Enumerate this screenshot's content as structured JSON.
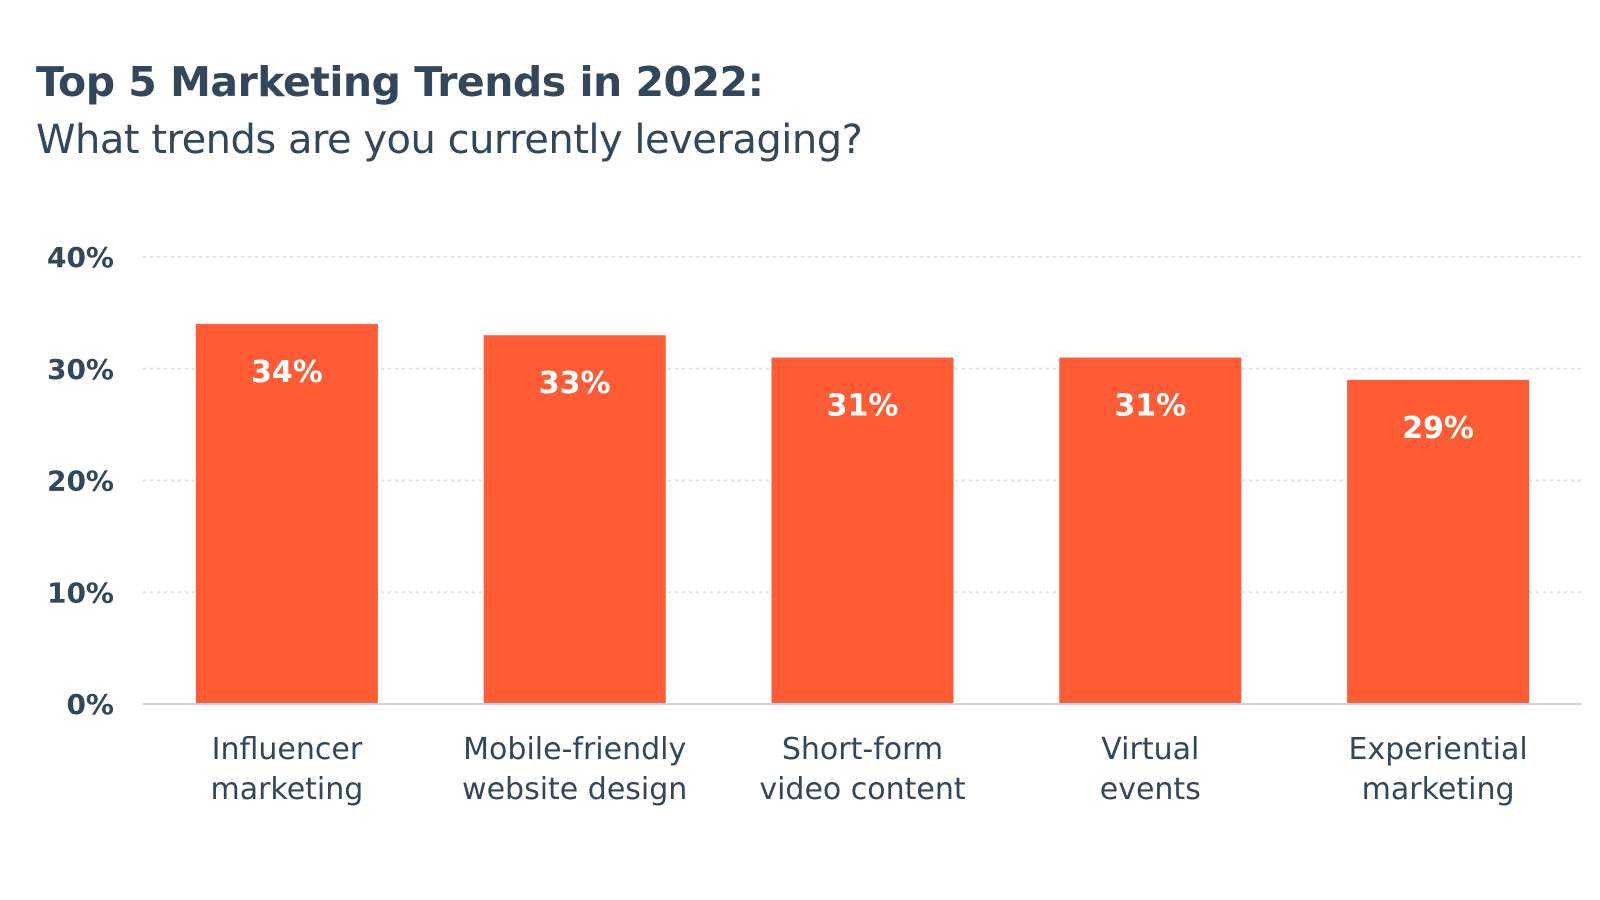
{
  "chart_data": {
    "type": "bar",
    "title": "Top 5 Marketing Trends in 2022:",
    "subtitle": "What trends are you currently leveraging?",
    "categories": [
      [
        "Influencer",
        "marketing"
      ],
      [
        "Mobile-friendly",
        "website design"
      ],
      [
        "Short-form",
        "video content"
      ],
      [
        "Virtual",
        "events"
      ],
      [
        "Experiential",
        "marketing"
      ]
    ],
    "values": [
      34,
      33,
      31,
      31,
      29
    ],
    "value_labels": [
      "34%",
      "33%",
      "31%",
      "31%",
      "29%"
    ],
    "ylim": [
      0,
      40
    ],
    "yticks": [
      0,
      10,
      20,
      30,
      40
    ],
    "ytick_labels": [
      "0%",
      "10%",
      "20%",
      "30%",
      "40%"
    ],
    "xlabel": "",
    "ylabel": "",
    "grid": true,
    "legend": "none",
    "bar_color": "#ff5c35",
    "text_color": "#33475b",
    "grid_color": "#dfe3eb",
    "axis_color": "#cbd6e2"
  }
}
